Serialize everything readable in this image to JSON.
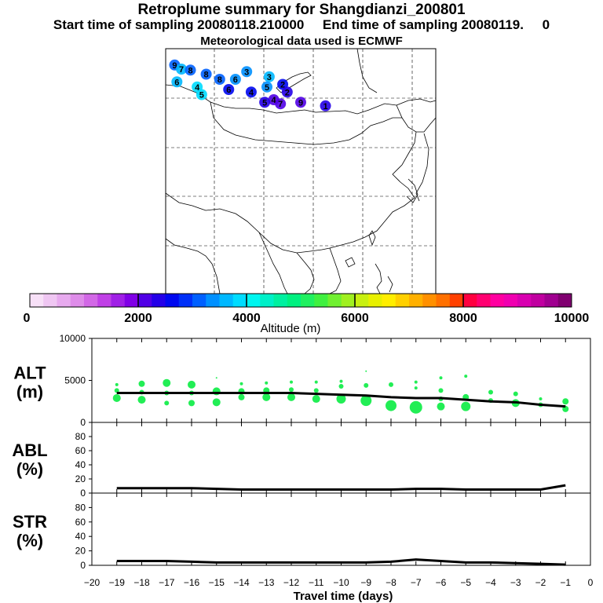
{
  "header": {
    "title": "Retroplume summary for Shangdianzi_200801",
    "sampling_line": "Start time of sampling 20080118.210000     End time of sampling 20080119.     0",
    "met_line": "Meteorological data used is ECMWF"
  },
  "colors": {
    "land_outline": "#000000",
    "grid": "#000000",
    "plot_points": "#22ee55",
    "mean_line": "#000000"
  },
  "map": {
    "plume_clusters": [
      {
        "label": "9",
        "lon": 80.0,
        "lat": 52.8,
        "alt": 3200
      },
      {
        "label": "7",
        "lon": 81.5,
        "lat": 52.0,
        "alt": 3600
      },
      {
        "label": "8",
        "lon": 83.5,
        "lat": 51.8,
        "alt": 3000
      },
      {
        "label": "8",
        "lon": 87.0,
        "lat": 51.0,
        "alt": 3200
      },
      {
        "label": "6",
        "lon": 80.5,
        "lat": 49.5,
        "alt": 3700
      },
      {
        "label": "4",
        "lon": 85.0,
        "lat": 48.5,
        "alt": 3800
      },
      {
        "label": "5",
        "lon": 86.0,
        "lat": 47.0,
        "alt": 3900
      },
      {
        "label": "8",
        "lon": 90.0,
        "lat": 50.0,
        "alt": 3000
      },
      {
        "label": "6",
        "lon": 93.5,
        "lat": 50.0,
        "alt": 3300
      },
      {
        "label": "3",
        "lon": 96.0,
        "lat": 51.5,
        "alt": 3400
      },
      {
        "label": "6",
        "lon": 92.0,
        "lat": 48.0,
        "alt": 2700
      },
      {
        "label": "4",
        "lon": 97.0,
        "lat": 47.5,
        "alt": 2600
      },
      {
        "label": "3",
        "lon": 101.0,
        "lat": 50.5,
        "alt": 3500
      },
      {
        "label": "5",
        "lon": 100.5,
        "lat": 48.5,
        "alt": 3300
      },
      {
        "label": "2",
        "lon": 104.0,
        "lat": 49.0,
        "alt": 2500
      },
      {
        "label": "2",
        "lon": 105.0,
        "lat": 47.5,
        "alt": 2300
      },
      {
        "label": "4",
        "lon": 102.0,
        "lat": 46.0,
        "alt": 2200
      },
      {
        "label": "5",
        "lon": 100.0,
        "lat": 45.5,
        "alt": 2300
      },
      {
        "label": "7",
        "lon": 103.5,
        "lat": 45.2,
        "alt": 2100
      },
      {
        "label": "9",
        "lon": 108.0,
        "lat": 45.5,
        "alt": 2000
      },
      {
        "label": "1",
        "lon": 113.5,
        "lat": 44.8,
        "alt": 2300
      }
    ]
  },
  "colorbar": {
    "tick_labels": [
      "0",
      "2000",
      "4000",
      "6000",
      "8000",
      "10000"
    ],
    "title": "Altitude (m)",
    "colors": [
      "#f7e0f7",
      "#efc6f2",
      "#e7aaee",
      "#de8ce9",
      "#d268e6",
      "#c040e6",
      "#a020e6",
      "#8000e6",
      "#5000e6",
      "#2400e8",
      "#0008f0",
      "#0030f8",
      "#0060ff",
      "#0090ff",
      "#00b8ff",
      "#00dcff",
      "#00f6f0",
      "#00f0c8",
      "#00f0a0",
      "#00f080",
      "#20f060",
      "#40f040",
      "#70f030",
      "#a0f020",
      "#c8f010",
      "#e8f000",
      "#ffee00",
      "#ffd000",
      "#ffb000",
      "#ff9000",
      "#ff7000",
      "#ff4000",
      "#ff0040",
      "#ff0070",
      "#ff00a0",
      "#f000b0",
      "#d800b0",
      "#c000a0",
      "#a00090",
      "#800070"
    ]
  },
  "chart_data": [
    {
      "type": "scatter",
      "title": "ALT (m)",
      "ylabel_line1": "ALT",
      "ylabel_line2": "(m)",
      "ylim": [
        0,
        10000
      ],
      "ytick_labels": [
        "10000",
        "5000",
        "0"
      ],
      "xlim": [
        -20,
        0
      ],
      "x": [
        -19,
        -18,
        -17,
        -16,
        -15,
        -14,
        -13,
        -12,
        -11,
        -10,
        -9,
        -8,
        -7,
        -6,
        -5,
        -4,
        -3,
        -2,
        -1
      ],
      "mean_line": [
        3500,
        3500,
        3500,
        3500,
        3500,
        3500,
        3500,
        3500,
        3400,
        3300,
        3200,
        3000,
        2900,
        2900,
        2700,
        2500,
        2400,
        2100,
        1900
      ],
      "points": [
        {
          "x": -19,
          "y": 4500,
          "s": 2
        },
        {
          "x": -19,
          "y": 3800,
          "s": 3
        },
        {
          "x": -19,
          "y": 2900,
          "s": 5
        },
        {
          "x": -18,
          "y": 4600,
          "s": 4
        },
        {
          "x": -18,
          "y": 3600,
          "s": 3
        },
        {
          "x": -18,
          "y": 2700,
          "s": 5
        },
        {
          "x": -17,
          "y": 4700,
          "s": 5
        },
        {
          "x": -17,
          "y": 3500,
          "s": 3
        },
        {
          "x": -17,
          "y": 2300,
          "s": 3
        },
        {
          "x": -16,
          "y": 4500,
          "s": 5
        },
        {
          "x": -16,
          "y": 3500,
          "s": 3
        },
        {
          "x": -16,
          "y": 2300,
          "s": 4
        },
        {
          "x": -15,
          "y": 5300,
          "s": 1
        },
        {
          "x": -15,
          "y": 3700,
          "s": 5
        },
        {
          "x": -15,
          "y": 2400,
          "s": 5
        },
        {
          "x": -14,
          "y": 4600,
          "s": 2
        },
        {
          "x": -14,
          "y": 3700,
          "s": 4
        },
        {
          "x": -14,
          "y": 3000,
          "s": 4
        },
        {
          "x": -13,
          "y": 4700,
          "s": 2
        },
        {
          "x": -13,
          "y": 3800,
          "s": 4
        },
        {
          "x": -13,
          "y": 3000,
          "s": 5
        },
        {
          "x": -12,
          "y": 4800,
          "s": 2
        },
        {
          "x": -12,
          "y": 3900,
          "s": 3
        },
        {
          "x": -12,
          "y": 3000,
          "s": 5
        },
        {
          "x": -11,
          "y": 4800,
          "s": 2
        },
        {
          "x": -11,
          "y": 3800,
          "s": 3
        },
        {
          "x": -11,
          "y": 2800,
          "s": 5
        },
        {
          "x": -10,
          "y": 4900,
          "s": 2
        },
        {
          "x": -10,
          "y": 4300,
          "s": 3
        },
        {
          "x": -10,
          "y": 2800,
          "s": 6
        },
        {
          "x": -9,
          "y": 6100,
          "s": 1
        },
        {
          "x": -9,
          "y": 4400,
          "s": 3
        },
        {
          "x": -9,
          "y": 2600,
          "s": 7
        },
        {
          "x": -8,
          "y": 4500,
          "s": 3
        },
        {
          "x": -8,
          "y": 2000,
          "s": 7
        },
        {
          "x": -7,
          "y": 4800,
          "s": 2
        },
        {
          "x": -7,
          "y": 4100,
          "s": 2
        },
        {
          "x": -7,
          "y": 1800,
          "s": 8
        },
        {
          "x": -6,
          "y": 5300,
          "s": 2
        },
        {
          "x": -6,
          "y": 3800,
          "s": 3
        },
        {
          "x": -6,
          "y": 2800,
          "s": 3
        },
        {
          "x": -6,
          "y": 1900,
          "s": 5
        },
        {
          "x": -5,
          "y": 5500,
          "s": 2
        },
        {
          "x": -5,
          "y": 3000,
          "s": 4
        },
        {
          "x": -5,
          "y": 1900,
          "s": 6
        },
        {
          "x": -4,
          "y": 3600,
          "s": 3
        },
        {
          "x": -4,
          "y": 2600,
          "s": 3
        },
        {
          "x": -3,
          "y": 3400,
          "s": 3
        },
        {
          "x": -3,
          "y": 2300,
          "s": 5
        },
        {
          "x": -2,
          "y": 2800,
          "s": 2
        },
        {
          "x": -2,
          "y": 2100,
          "s": 3
        },
        {
          "x": -1,
          "y": 2500,
          "s": 4
        },
        {
          "x": -1,
          "y": 1600,
          "s": 4
        }
      ]
    },
    {
      "type": "line",
      "title": "ABL (%)",
      "ylabel_line1": "ABL",
      "ylabel_line2": "(%)",
      "ylim": [
        0,
        100
      ],
      "ytick_labels": [
        "80",
        "60",
        "40",
        "20",
        "0"
      ],
      "xlim": [
        -20,
        0
      ],
      "x": [
        -19,
        -18,
        -17,
        -16,
        -15,
        -14,
        -13,
        -12,
        -11,
        -10,
        -9,
        -8,
        -7,
        -6,
        -5,
        -4,
        -3,
        -2,
        -1
      ],
      "values": [
        7,
        7,
        7,
        7,
        6,
        5,
        5,
        5,
        5,
        5,
        5,
        5,
        6,
        6,
        5,
        5,
        5,
        5,
        11
      ]
    },
    {
      "type": "line",
      "title": "STR (%)",
      "ylabel_line1": "STR",
      "ylabel_line2": "(%)",
      "ylim": [
        0,
        100
      ],
      "ytick_labels": [
        "80",
        "60",
        "40",
        "20",
        "0"
      ],
      "xlim": [
        -20,
        0
      ],
      "x": [
        -19,
        -18,
        -17,
        -16,
        -15,
        -14,
        -13,
        -12,
        -11,
        -10,
        -9,
        -8,
        -7,
        -6,
        -5,
        -4,
        -3,
        -2,
        -1
      ],
      "values": [
        6,
        6,
        6,
        5,
        4,
        4,
        4,
        4,
        4,
        4,
        4,
        5,
        8,
        6,
        4,
        4,
        3,
        2,
        1
      ],
      "xlabel": "Travel time (days)",
      "xtick_labels": [
        "−20",
        "−19",
        "−18",
        "−17",
        "−16",
        "−15",
        "−14",
        "−13",
        "−12",
        "−11",
        "−10",
        "−9",
        "−8",
        "−7",
        "−6",
        "−5",
        "−4",
        "−3",
        "−2",
        "−1",
        "0"
      ]
    }
  ]
}
